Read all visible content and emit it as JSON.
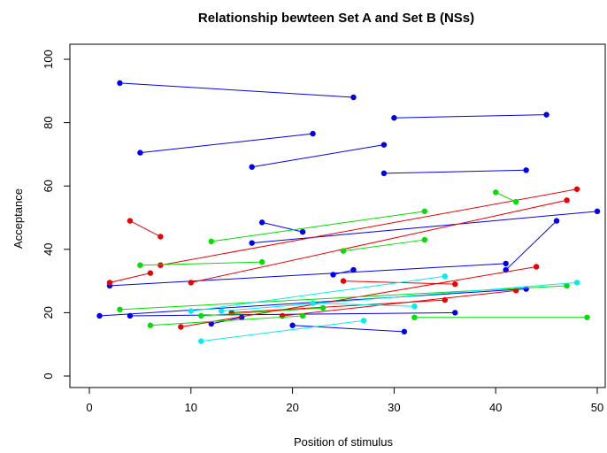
{
  "chart_data": {
    "type": "scatter",
    "title": "Relationship bewteen Set A and Set B (NSs)",
    "xlabel": "Position of stimulus",
    "ylabel": "Acceptance",
    "xlim": [
      -2,
      51
    ],
    "ylim": [
      -2,
      104
    ],
    "xticks": [
      0,
      10,
      20,
      30,
      40,
      50
    ],
    "yticks": [
      0,
      20,
      40,
      60,
      80,
      100
    ],
    "grid": false,
    "legend": "none",
    "colors": {
      "blue": "#0000ee",
      "red": "#ee0000",
      "green": "#00e000",
      "cyan": "#00eeee"
    },
    "segments": [
      {
        "color": "blue",
        "x": [
          3,
          26
        ],
        "y": [
          92.5,
          88
        ]
      },
      {
        "color": "blue",
        "x": [
          30,
          45
        ],
        "y": [
          81.5,
          82.5
        ]
      },
      {
        "color": "blue",
        "x": [
          5,
          22
        ],
        "y": [
          70.5,
          76.5
        ]
      },
      {
        "color": "blue",
        "x": [
          16,
          29
        ],
        "y": [
          66,
          73
        ]
      },
      {
        "color": "blue",
        "x": [
          29,
          43
        ],
        "y": [
          64,
          65
        ]
      },
      {
        "color": "blue",
        "x": [
          17,
          21
        ],
        "y": [
          48.5,
          45.5
        ]
      },
      {
        "color": "blue",
        "x": [
          16,
          50
        ],
        "y": [
          42,
          52
        ]
      },
      {
        "color": "blue",
        "x": [
          2,
          41
        ],
        "y": [
          28.5,
          35.5
        ]
      },
      {
        "color": "blue",
        "x": [
          24,
          26
        ],
        "y": [
          32,
          33.5
        ]
      },
      {
        "color": "blue",
        "x": [
          41,
          46
        ],
        "y": [
          33.5,
          49
        ]
      },
      {
        "color": "blue",
        "x": [
          1,
          43
        ],
        "y": [
          19,
          27.5
        ]
      },
      {
        "color": "blue",
        "x": [
          4,
          36
        ],
        "y": [
          19,
          20
        ]
      },
      {
        "color": "blue",
        "x": [
          12,
          15
        ],
        "y": [
          16.5,
          18.5
        ]
      },
      {
        "color": "blue",
        "x": [
          20,
          31
        ],
        "y": [
          16,
          14
        ]
      },
      {
        "color": "red",
        "x": [
          4,
          7
        ],
        "y": [
          49,
          44
        ]
      },
      {
        "color": "red",
        "x": [
          7,
          48
        ],
        "y": [
          35,
          59
        ]
      },
      {
        "color": "red",
        "x": [
          10,
          47
        ],
        "y": [
          29.5,
          55.5
        ]
      },
      {
        "color": "red",
        "x": [
          2,
          6
        ],
        "y": [
          29.5,
          32.5
        ]
      },
      {
        "color": "red",
        "x": [
          25,
          36
        ],
        "y": [
          30,
          29
        ]
      },
      {
        "color": "red",
        "x": [
          9,
          44
        ],
        "y": [
          15.5,
          34.5
        ]
      },
      {
        "color": "red",
        "x": [
          14,
          35
        ],
        "y": [
          20,
          24
        ]
      },
      {
        "color": "red",
        "x": [
          19,
          42
        ],
        "y": [
          19,
          27
        ]
      },
      {
        "color": "green",
        "x": [
          12,
          33
        ],
        "y": [
          42.5,
          52
        ]
      },
      {
        "color": "green",
        "x": [
          25,
          33
        ],
        "y": [
          39.5,
          43
        ]
      },
      {
        "color": "green",
        "x": [
          5,
          17
        ],
        "y": [
          35,
          36
        ]
      },
      {
        "color": "green",
        "x": [
          40,
          42
        ],
        "y": [
          58,
          55
        ]
      },
      {
        "color": "green",
        "x": [
          3,
          47
        ],
        "y": [
          21,
          28.5
        ]
      },
      {
        "color": "green",
        "x": [
          6,
          21
        ],
        "y": [
          16,
          19
        ]
      },
      {
        "color": "green",
        "x": [
          11,
          23
        ],
        "y": [
          19,
          21.5
        ]
      },
      {
        "color": "green",
        "x": [
          32,
          49
        ],
        "y": [
          18.5,
          18.5
        ]
      },
      {
        "color": "cyan",
        "x": [
          10,
          35
        ],
        "y": [
          20.5,
          31.5
        ]
      },
      {
        "color": "cyan",
        "x": [
          13,
          48
        ],
        "y": [
          20.5,
          29.5
        ]
      },
      {
        "color": "cyan",
        "x": [
          22,
          32
        ],
        "y": [
          23,
          22
        ]
      },
      {
        "color": "cyan",
        "x": [
          11,
          27
        ],
        "y": [
          11,
          17.5
        ]
      }
    ]
  }
}
